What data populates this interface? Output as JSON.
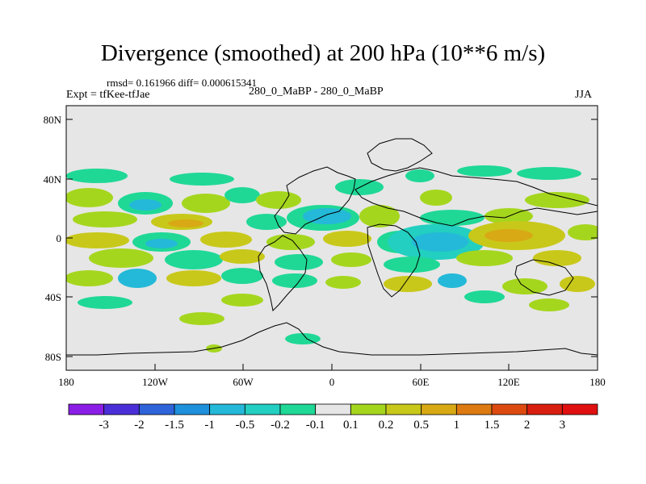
{
  "header": {
    "title": "Divergence (smoothed) at 200 hPa (10**6 m/s)",
    "stats": "rmsd= 0.161966 diff= 0.000615341",
    "experiment": "Expt = tfKee-tfJae",
    "subtitle": "280_0_MaBP - 280_0_MaBP",
    "season": "JJA"
  },
  "map": {
    "lat_ticks": [
      "80N",
      "40N",
      "0",
      "40S",
      "80S"
    ],
    "lon_ticks": [
      "180",
      "120W",
      "60W",
      "0",
      "60E",
      "120E",
      "180"
    ],
    "background_color": "#e6e6e6"
  },
  "colorbar": {
    "labels": [
      "-3",
      "-2",
      "-1.5",
      "-1",
      "-0.5",
      "-0.2",
      "-0.1",
      "0.1",
      "0.2",
      "0.5",
      "1",
      "1.5",
      "2",
      "3"
    ],
    "colors": [
      "#8a1ee6",
      "#4a2fd8",
      "#2e63d9",
      "#1e90dc",
      "#24b9d8",
      "#22cfc0",
      "#1fd896",
      "#e6e6e6",
      "#a5d61e",
      "#c8c81a",
      "#d8a915",
      "#dd7a12",
      "#dd4a10",
      "#d81e0f",
      "#e01010"
    ]
  }
}
